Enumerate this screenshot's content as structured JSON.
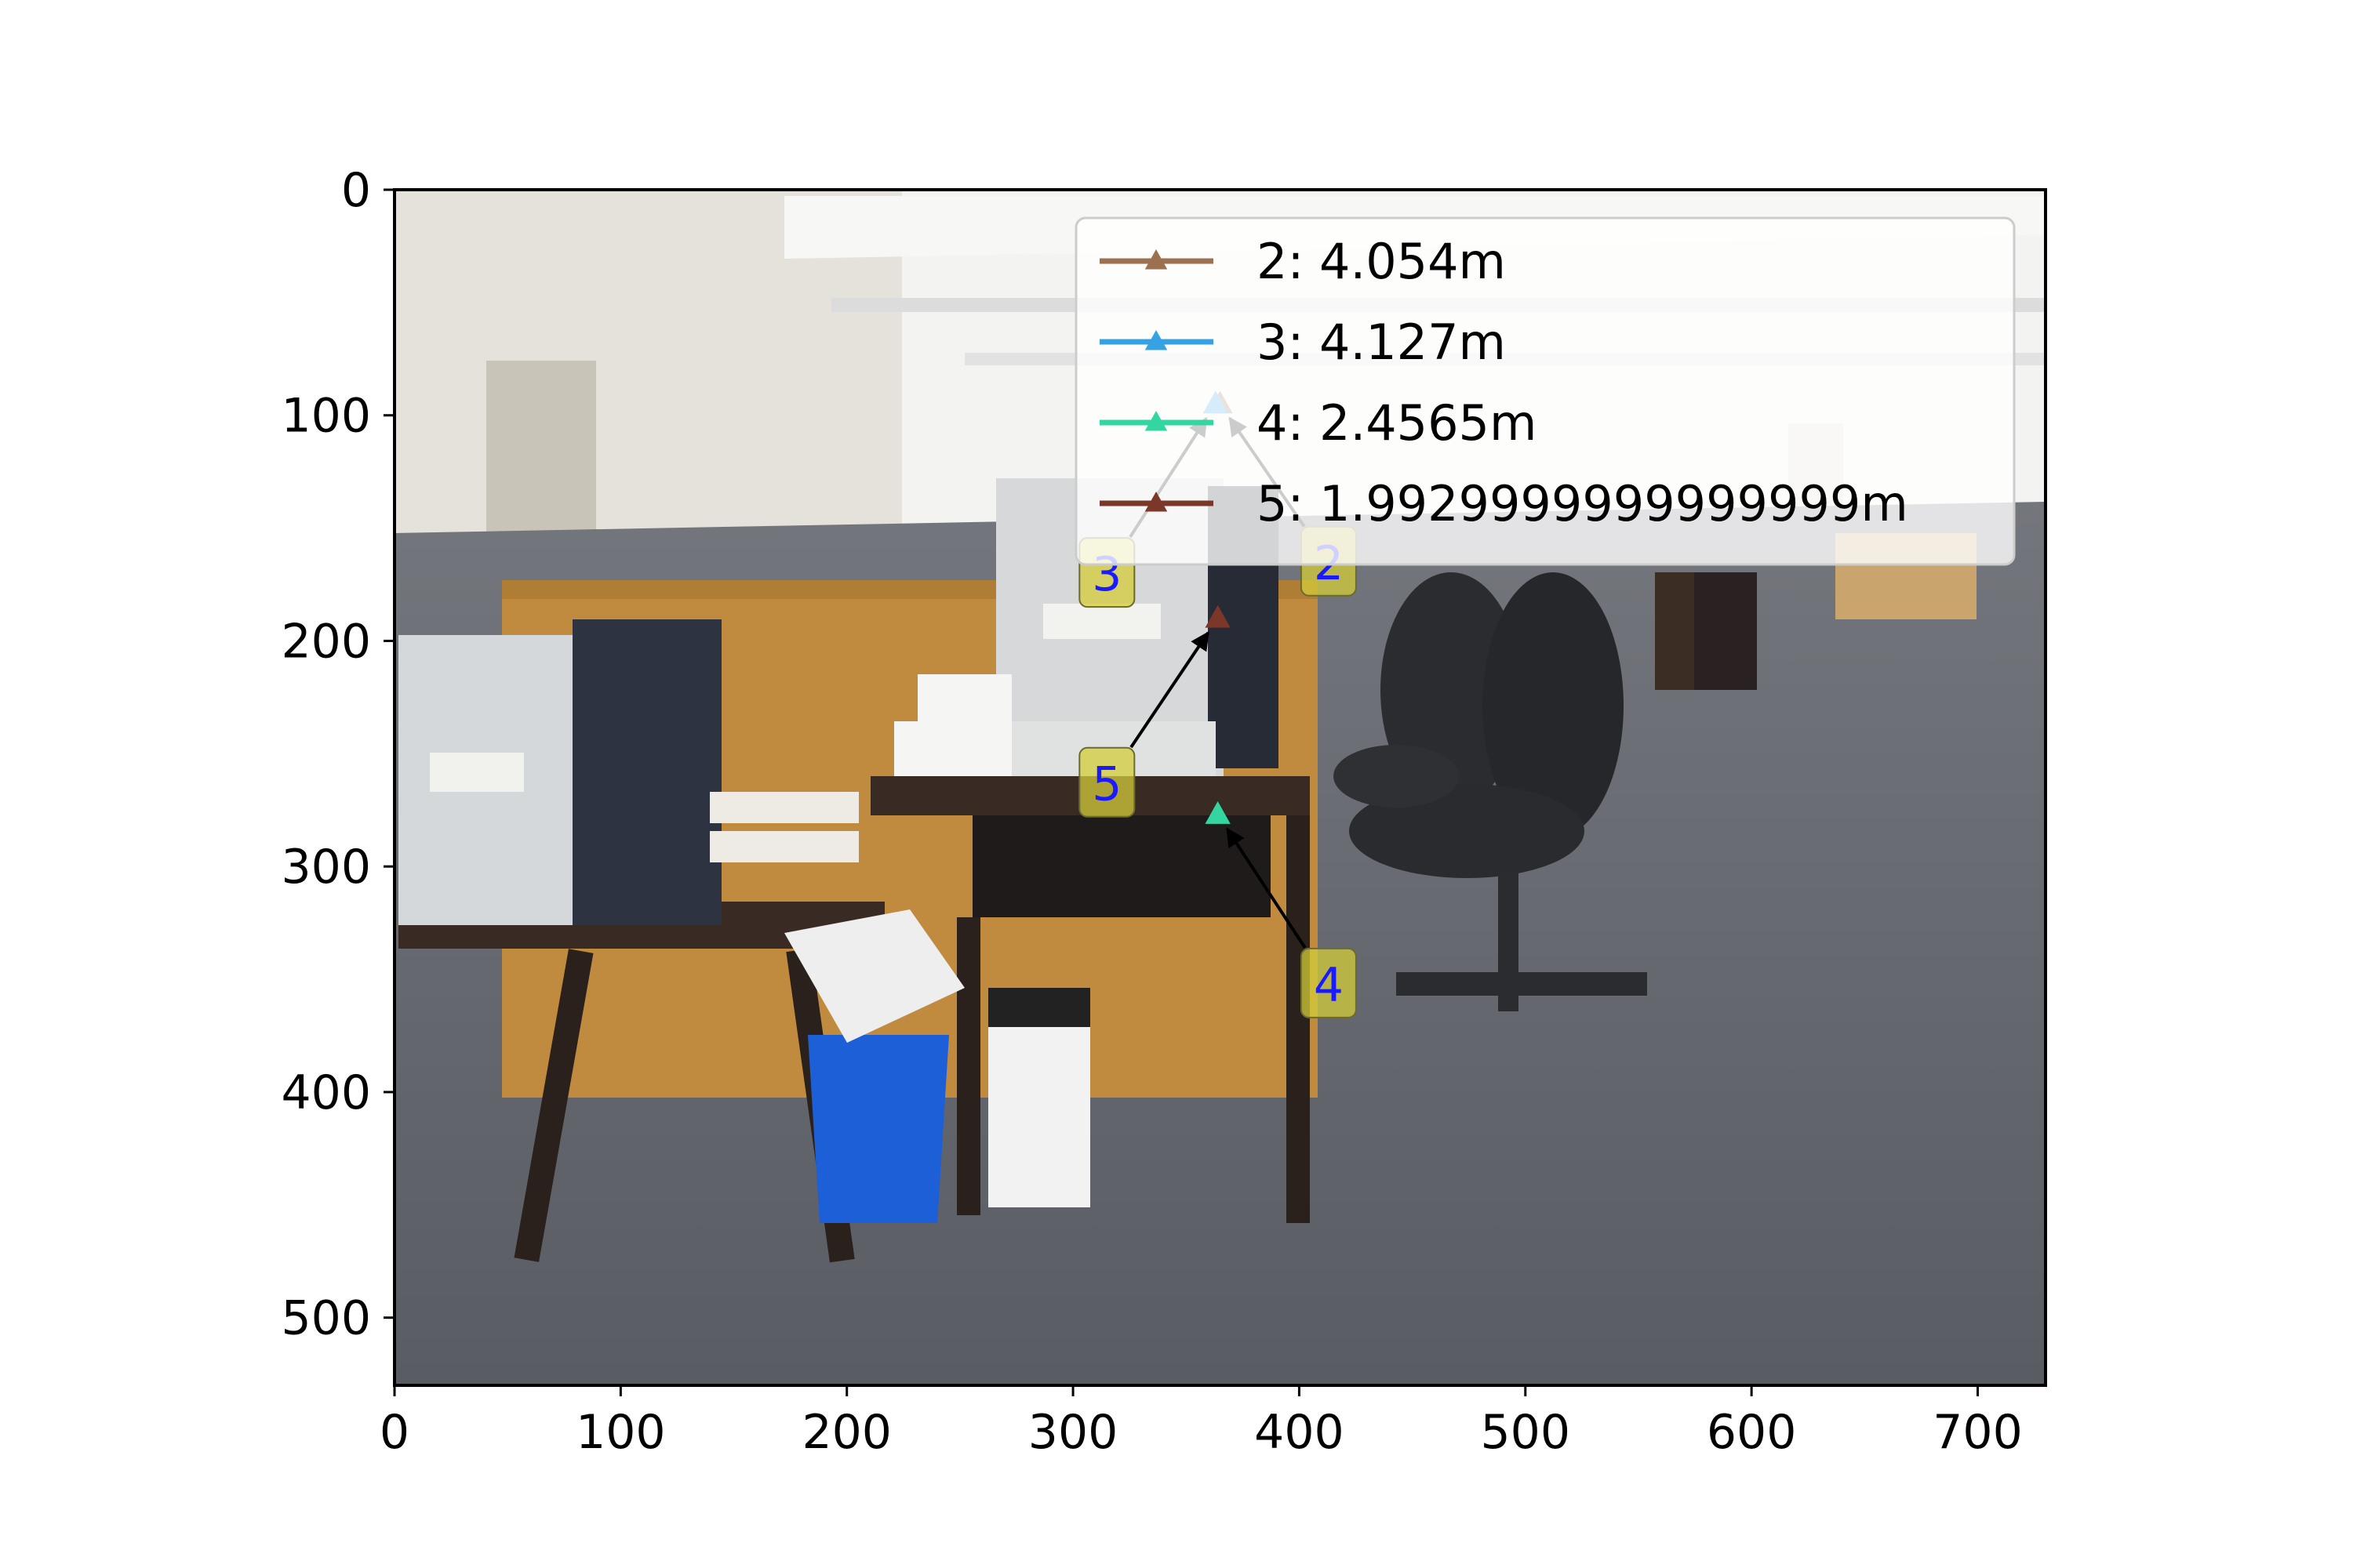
{
  "chart_data": {
    "type": "scatter",
    "title": "",
    "xlabel": "",
    "ylabel": "",
    "xlim": [
      0,
      730
    ],
    "ylim": [
      530,
      0
    ],
    "y_inverted": true,
    "grid": false,
    "legend_placement": "upper-right",
    "x_ticks": [
      0,
      100,
      200,
      300,
      400,
      500,
      600,
      700
    ],
    "y_ticks": [
      0,
      100,
      200,
      300,
      400,
      500
    ],
    "background": "photograph of an office room with printers, desks, a blue bin and black office chairs",
    "series": [
      {
        "name": "2: 4.054m",
        "color": "#9b7150",
        "marker": "triangle",
        "x": 365,
        "y": 95,
        "label": "2",
        "label_x": 413,
        "label_y": 165
      },
      {
        "name": "3: 4.127m",
        "color": "#36a2e3",
        "marker": "triangle",
        "x": 363,
        "y": 95,
        "label": "3",
        "label_x": 315,
        "label_y": 170
      },
      {
        "name": "4: 2.4565m",
        "color": "#33d6a0",
        "marker": "triangle",
        "x": 364,
        "y": 277,
        "label": "4",
        "label_x": 413,
        "label_y": 352
      },
      {
        "name": "5: 1.9929999999999999m",
        "color": "#7b3728",
        "marker": "triangle",
        "x": 364,
        "y": 190,
        "label": "5",
        "label_x": 315,
        "label_y": 263
      }
    ]
  }
}
